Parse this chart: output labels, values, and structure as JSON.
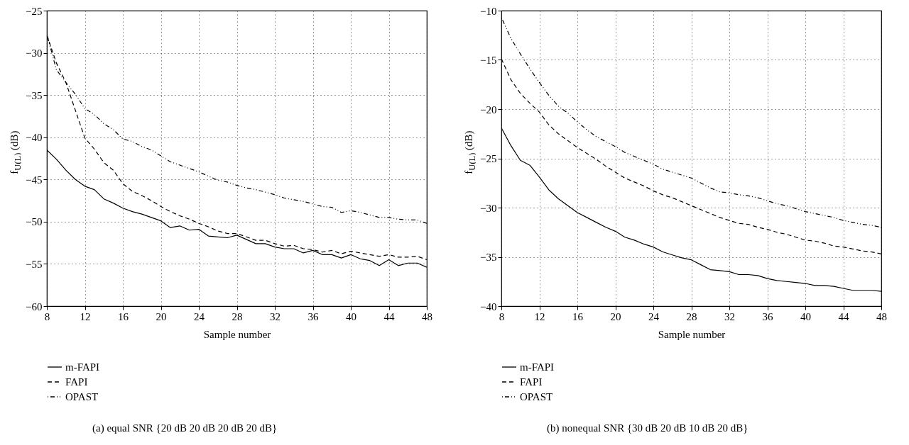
{
  "chart_data": [
    {
      "type": "line",
      "xlabel": "Sample number",
      "ylabel": "f$_{U(L)}$ (dB)",
      "x": [
        8,
        9,
        10,
        11,
        12,
        13,
        14,
        15,
        16,
        17,
        18,
        19,
        20,
        21,
        22,
        23,
        24,
        25,
        26,
        27,
        28,
        29,
        30,
        31,
        32,
        33,
        34,
        35,
        36,
        37,
        38,
        39,
        40,
        41,
        42,
        43,
        44,
        45,
        46,
        47,
        48
      ],
      "xlim": [
        8,
        48
      ],
      "xticks": [
        8,
        12,
        16,
        20,
        24,
        28,
        32,
        36,
        40,
        44,
        48
      ],
      "ylim": [
        -60,
        -25
      ],
      "yticks": [
        -60,
        -55,
        -50,
        -45,
        -40,
        -35,
        -30,
        -25
      ],
      "grid": true,
      "legend": "bottom",
      "series": [
        {
          "name": "m-FAPI",
          "color": "#000000",
          "line_style": "solid",
          "values": [
            -41.5,
            -42.6,
            -43.9,
            -45.0,
            -45.8,
            -46.2,
            -47.3,
            -47.8,
            -48.4,
            -48.8,
            -49.1,
            -49.5,
            -49.9,
            -50.7,
            -50.5,
            -51.0,
            -50.9,
            -51.7,
            -51.8,
            -51.9,
            -51.6,
            -52.1,
            -52.6,
            -52.6,
            -53.0,
            -53.2,
            -53.2,
            -53.7,
            -53.4,
            -53.9,
            -53.9,
            -54.3,
            -53.9,
            -54.4,
            -54.6,
            -55.2,
            -54.5,
            -55.2,
            -54.9,
            -54.9,
            -55.4
          ]
        },
        {
          "name": "FAPI",
          "color": "#000000",
          "line_style": "dashed",
          "values": [
            -27.9,
            -31.2,
            -33.5,
            -36.8,
            -40.1,
            -41.4,
            -43.0,
            -43.9,
            -45.5,
            -46.4,
            -46.9,
            -47.5,
            -48.2,
            -48.8,
            -49.3,
            -49.7,
            -50.2,
            -50.6,
            -51.1,
            -51.4,
            -51.4,
            -51.8,
            -52.2,
            -52.2,
            -52.6,
            -52.9,
            -52.8,
            -53.2,
            -53.3,
            -53.6,
            -53.4,
            -53.8,
            -53.5,
            -53.7,
            -53.9,
            -54.1,
            -53.9,
            -54.2,
            -54.2,
            -54.1,
            -54.5
          ]
        },
        {
          "name": "OPAST",
          "color": "#000000",
          "line_style": "dashdot",
          "values": [
            -27.8,
            -32.0,
            -33.5,
            -34.9,
            -36.6,
            -37.3,
            -38.4,
            -39.1,
            -40.2,
            -40.5,
            -41.1,
            -41.5,
            -42.2,
            -42.9,
            -43.3,
            -43.7,
            -44.1,
            -44.6,
            -45.1,
            -45.3,
            -45.7,
            -46.0,
            -46.2,
            -46.5,
            -46.8,
            -47.2,
            -47.4,
            -47.6,
            -47.9,
            -48.2,
            -48.3,
            -48.9,
            -48.7,
            -48.9,
            -49.2,
            -49.5,
            -49.5,
            -49.7,
            -49.8,
            -49.8,
            -50.2
          ]
        }
      ],
      "annotations": [
        "(a) equal SNR {20 dB 20 dB 20 dB 20 dB}"
      ]
    },
    {
      "type": "line",
      "xlabel": "Sample number",
      "ylabel": "f$_{U(L)}$ (dB)",
      "x": [
        8,
        9,
        10,
        11,
        12,
        13,
        14,
        15,
        16,
        17,
        18,
        19,
        20,
        21,
        22,
        23,
        24,
        25,
        26,
        27,
        28,
        29,
        30,
        31,
        32,
        33,
        34,
        35,
        36,
        37,
        38,
        39,
        40,
        41,
        42,
        43,
        44,
        45,
        46,
        47,
        48
      ],
      "xlim": [
        8,
        48
      ],
      "xticks": [
        8,
        12,
        16,
        20,
        24,
        28,
        32,
        36,
        40,
        44,
        48
      ],
      "ylim": [
        -40,
        -10
      ],
      "yticks": [
        -40,
        -35,
        -30,
        -25,
        -20,
        -15,
        -10
      ],
      "grid": true,
      "legend": "bottom",
      "series": [
        {
          "name": "m-FAPI",
          "color": "#000000",
          "line_style": "solid",
          "values": [
            -21.9,
            -23.7,
            -25.2,
            -25.7,
            -26.9,
            -28.2,
            -29.1,
            -29.8,
            -30.5,
            -31.0,
            -31.5,
            -32.0,
            -32.4,
            -33.0,
            -33.3,
            -33.7,
            -34.0,
            -34.5,
            -34.8,
            -35.1,
            -35.3,
            -35.8,
            -36.3,
            -36.4,
            -36.5,
            -36.8,
            -36.8,
            -36.9,
            -37.2,
            -37.4,
            -37.5,
            -37.6,
            -37.7,
            -37.9,
            -37.9,
            -38.0,
            -38.2,
            -38.4,
            -38.4,
            -38.4,
            -38.5
          ]
        },
        {
          "name": "FAPI",
          "color": "#000000",
          "line_style": "dashed",
          "values": [
            -14.9,
            -17.0,
            -18.4,
            -19.4,
            -20.3,
            -21.6,
            -22.5,
            -23.2,
            -23.9,
            -24.5,
            -25.1,
            -25.8,
            -26.4,
            -27.0,
            -27.4,
            -27.8,
            -28.3,
            -28.7,
            -29.0,
            -29.4,
            -29.8,
            -30.2,
            -30.6,
            -31.0,
            -31.3,
            -31.6,
            -31.7,
            -32.0,
            -32.2,
            -32.5,
            -32.7,
            -33.0,
            -33.3,
            -33.4,
            -33.6,
            -33.9,
            -34.0,
            -34.2,
            -34.4,
            -34.5,
            -34.7
          ]
        },
        {
          "name": "OPAST",
          "color": "#000000",
          "line_style": "dashdot",
          "values": [
            -10.7,
            -12.8,
            -14.4,
            -15.9,
            -17.3,
            -18.6,
            -19.7,
            -20.4,
            -21.3,
            -22.1,
            -22.8,
            -23.3,
            -23.8,
            -24.4,
            -24.8,
            -25.2,
            -25.6,
            -26.1,
            -26.4,
            -26.7,
            -27.0,
            -27.5,
            -28.0,
            -28.4,
            -28.5,
            -28.7,
            -28.8,
            -29.0,
            -29.3,
            -29.6,
            -29.8,
            -30.1,
            -30.4,
            -30.6,
            -30.8,
            -31.0,
            -31.3,
            -31.5,
            -31.7,
            -31.8,
            -32.0
          ]
        }
      ],
      "annotations": [
        "(b) nonequal SNR {30 dB 20 dB 10 dB 20 dB}"
      ]
    }
  ]
}
